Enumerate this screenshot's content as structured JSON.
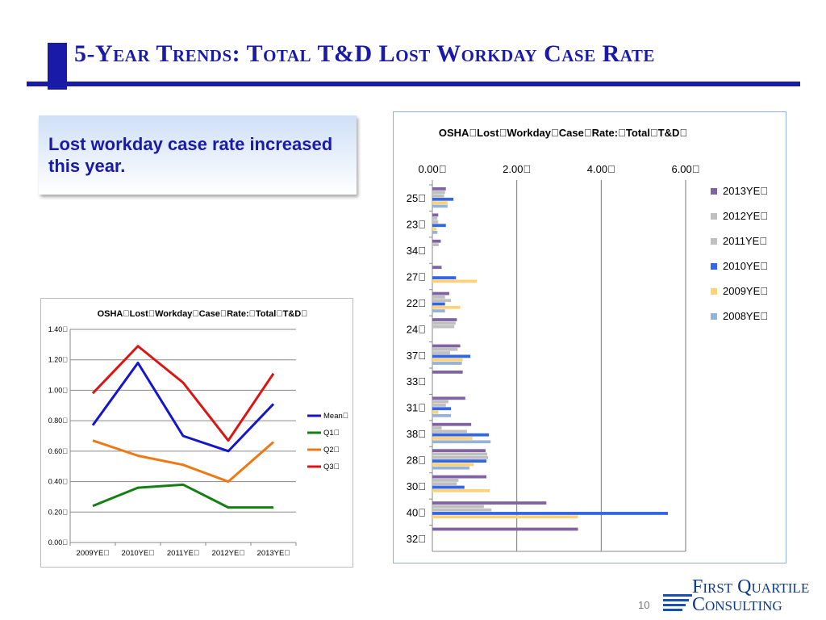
{
  "slide": {
    "title": "5-Year Trends: Total T&D Lost Workday Case Rate",
    "callout_text": "Lost workday case rate increased this year.",
    "page_number": "10",
    "logo": {
      "line1": "First Quartile",
      "line2": "Consulting"
    }
  },
  "colors": {
    "title": "#1a1aa8",
    "bar_2013": "#8064a2",
    "bar_2012": "#bfbfbf",
    "bar_2011": "#c0c0c0",
    "bar_2010": "#3366e6",
    "bar_2009": "#ffd278",
    "bar_2008": "#95b3d7",
    "line_mean": "#1515cc",
    "line_q1": "#148014",
    "line_q2": "#f07814",
    "line_q3": "#dc1414"
  },
  "chart_data": [
    {
      "type": "bar",
      "orientation": "horizontal",
      "title": "OSHA\u0000Lost\u0000Workday\u0000Case\u0000Rate:\u0000Total\u0000T&D\u0000",
      "categories": [
        "25\u0000",
        "23\u0000",
        "34\u0000",
        "27\u0000",
        "22\u0000",
        "24\u0000",
        "37\u0000",
        "33\u0000",
        "31\u0000",
        "38\u0000",
        "28\u0000",
        "30\u0000",
        "40\u0000",
        "32\u0000"
      ],
      "xlim": [
        0,
        6
      ],
      "xticks": [
        "0.00\u0000",
        "2.00\u0000",
        "4.00\u0000",
        "6.00\u0000"
      ],
      "legend_position": "right",
      "grid": true,
      "series": [
        {
          "name": "2013YE\u0000",
          "color": "#8064a2",
          "values": [
            0.32,
            0.14,
            0.2,
            0.22,
            0.4,
            0.58,
            0.66,
            0.72,
            0.78,
            0.92,
            1.26,
            1.28,
            2.7,
            3.45
          ]
        },
        {
          "name": "2012YE\u0000",
          "color": "#bfbfbf",
          "values": [
            0.3,
            0.12,
            0.15,
            0.0,
            0.3,
            0.55,
            0.6,
            0.0,
            0.38,
            0.22,
            1.3,
            0.62,
            1.22,
            0.0
          ]
        },
        {
          "name": "2011YE\u0000",
          "color": "#c0c0c0",
          "values": [
            0.28,
            0.14,
            0.0,
            0.0,
            0.44,
            0.52,
            0.42,
            0.0,
            0.32,
            0.82,
            1.32,
            0.58,
            1.4,
            0.0
          ]
        },
        {
          "name": "2010YE\u0000",
          "color": "#3366e6",
          "values": [
            0.5,
            0.32,
            0.0,
            0.56,
            0.3,
            0.0,
            0.9,
            0.0,
            0.44,
            1.34,
            1.28,
            0.76,
            5.58,
            0.0
          ]
        },
        {
          "name": "2009YE\u0000",
          "color": "#ffd278",
          "values": [
            0.36,
            0.1,
            0.0,
            1.05,
            0.66,
            0.0,
            0.72,
            0.0,
            0.14,
            0.95,
            0.98,
            1.36,
            3.45,
            0.0
          ]
        },
        {
          "name": "2008YE\u0000",
          "color": "#95b3d7",
          "values": [
            0.36,
            0.12,
            0.0,
            0.0,
            0.3,
            0.0,
            0.7,
            0.0,
            0.44,
            1.38,
            0.88,
            0.0,
            0.0,
            0.0
          ]
        }
      ]
    },
    {
      "type": "line",
      "title": "OSHA\u0000Lost\u0000Workday\u0000Case\u0000Rate:\u0000Total\u0000T&D\u0000",
      "categories": [
        "2009YE\u0000",
        "2010YE\u0000",
        "2011YE\u0000",
        "2012YE\u0000",
        "2013YE\u0000"
      ],
      "ylim": [
        0,
        1.4
      ],
      "yticks": [
        "0.00\u0000",
        "0.20\u0000",
        "0.40\u0000",
        "0.60\u0000",
        "0.80\u0000",
        "1.00\u0000",
        "1.20\u0000",
        "1.40\u0000"
      ],
      "legend_position": "right",
      "grid": true,
      "series": [
        {
          "name": "Mean\u0000",
          "color": "#1515cc",
          "values": [
            0.77,
            1.18,
            0.7,
            0.6,
            0.91
          ]
        },
        {
          "name": "Q1\u0000",
          "color": "#148014",
          "values": [
            0.24,
            0.36,
            0.38,
            0.23,
            0.23
          ]
        },
        {
          "name": "Q2\u0000",
          "color": "#f07814",
          "values": [
            0.67,
            0.57,
            0.51,
            0.4,
            0.66
          ]
        },
        {
          "name": "Q3\u0000",
          "color": "#dc1414",
          "values": [
            0.98,
            1.29,
            1.05,
            0.67,
            1.11
          ]
        }
      ]
    }
  ]
}
